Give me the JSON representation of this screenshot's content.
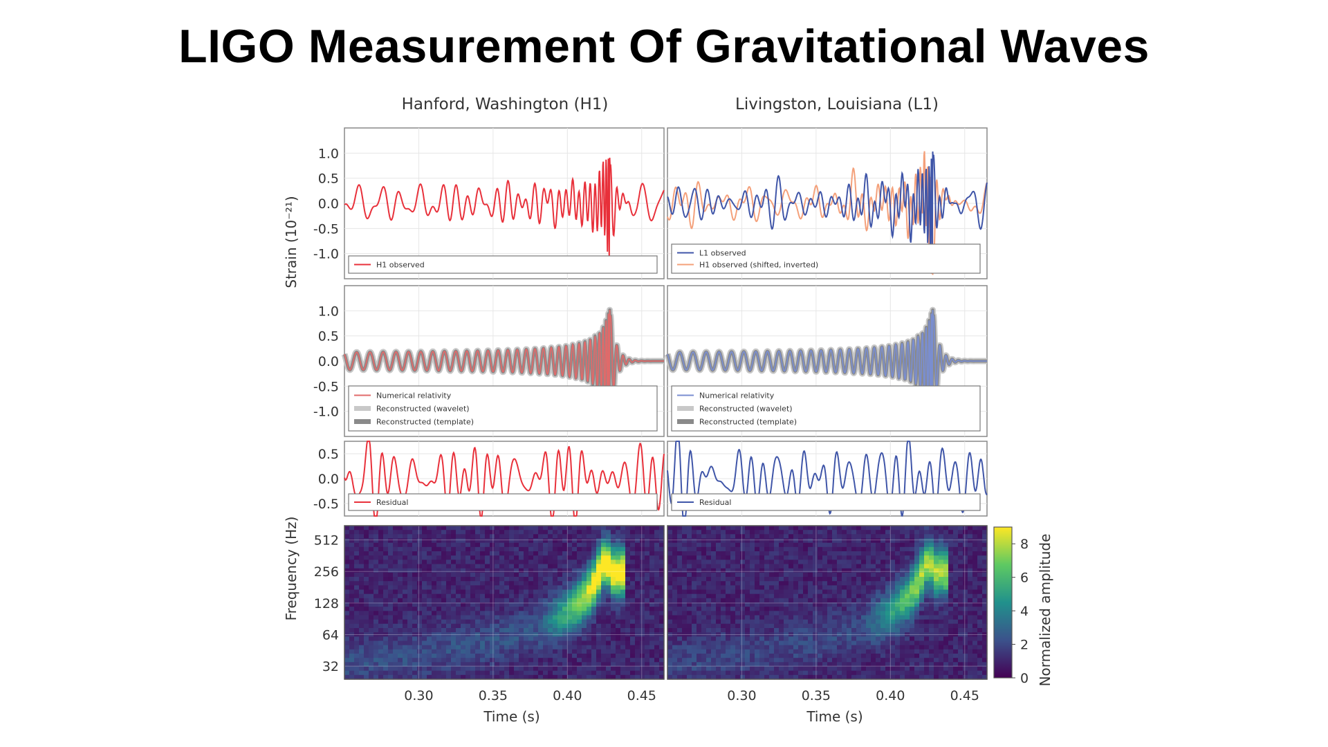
{
  "page": {
    "title": "LIGO Measurement Of Gravitational Waves"
  },
  "colors": {
    "h1": "#e8303a",
    "l1": "#3f55a8",
    "h1_shifted": "#f4a07a",
    "nr_h1": "#e06a6a",
    "nr_l1": "#7a8ed0",
    "wavelet_band": "#c8c8c8",
    "template_band": "#8a8a8a"
  },
  "chart_data": [
    {
      "id": "h1-observed",
      "type": "line",
      "column_title": "Hanford, Washington (H1)",
      "ylabel": "Strain (10⁻²¹)",
      "ylim": [
        -1.5,
        1.5
      ],
      "yticks": [
        1.0,
        0.5,
        0.0,
        -0.5,
        -1.0
      ],
      "yticklabels": [
        "1.0",
        "0.5",
        "0.0",
        "-0.5",
        "-1.0"
      ],
      "xlim": [
        0.25,
        0.465
      ],
      "grid": true,
      "series": [
        {
          "name": "H1 observed",
          "style": "noisy-chirp",
          "color_key": "h1"
        }
      ],
      "legend": [
        {
          "label": "H1 observed",
          "color_key": "h1"
        }
      ]
    },
    {
      "id": "l1-observed",
      "type": "line",
      "column_title": "Livingston, Louisiana (L1)",
      "ylim": [
        -1.5,
        1.5
      ],
      "xlim": [
        0.25,
        0.465
      ],
      "grid": true,
      "series": [
        {
          "name": "H1 observed (shifted, inverted)",
          "style": "noisy-chirp",
          "color_key": "h1_shifted"
        },
        {
          "name": "L1 observed",
          "style": "noisy-chirp",
          "color_key": "l1"
        }
      ],
      "legend": [
        {
          "label": "L1 observed",
          "color_key": "l1"
        },
        {
          "label": "H1 observed (shifted, inverted)",
          "color_key": "h1_shifted"
        }
      ]
    },
    {
      "id": "h1-reconstructed",
      "type": "line",
      "ylim": [
        -1.5,
        1.5
      ],
      "yticks": [
        1.0,
        0.5,
        0.0,
        -0.5,
        -1.0
      ],
      "yticklabels": [
        "1.0",
        "0.5",
        "0.0",
        "-0.5",
        "-1.0"
      ],
      "xlim": [
        0.25,
        0.465
      ],
      "grid": true,
      "series": [
        {
          "name": "Numerical relativity",
          "style": "clean-chirp",
          "color_key": "nr_h1"
        }
      ],
      "legend": [
        {
          "label": "Numerical relativity",
          "color_key": "nr_h1"
        },
        {
          "label": "Reconstructed (wavelet)",
          "color_key": "wavelet_band"
        },
        {
          "label": "Reconstructed (template)",
          "color_key": "template_band"
        }
      ]
    },
    {
      "id": "l1-reconstructed",
      "type": "line",
      "ylim": [
        -1.5,
        1.5
      ],
      "xlim": [
        0.25,
        0.465
      ],
      "grid": true,
      "series": [
        {
          "name": "Numerical relativity",
          "style": "clean-chirp",
          "color_key": "nr_l1"
        }
      ],
      "legend": [
        {
          "label": "Numerical relativity",
          "color_key": "nr_l1"
        },
        {
          "label": "Reconstructed (wavelet)",
          "color_key": "wavelet_band"
        },
        {
          "label": "Reconstructed (template)",
          "color_key": "template_band"
        }
      ]
    },
    {
      "id": "h1-residual",
      "type": "line",
      "ylim": [
        -0.75,
        0.75
      ],
      "yticks": [
        0.5,
        0.0,
        -0.5
      ],
      "yticklabels": [
        "0.5",
        "0.0",
        "-0.5"
      ],
      "xlim": [
        0.25,
        0.465
      ],
      "grid": true,
      "series": [
        {
          "name": "Residual",
          "style": "noise",
          "color_key": "h1"
        }
      ],
      "legend": [
        {
          "label": "Residual",
          "color_key": "h1"
        }
      ]
    },
    {
      "id": "l1-residual",
      "type": "line",
      "ylim": [
        -0.75,
        0.75
      ],
      "xlim": [
        0.25,
        0.465
      ],
      "grid": true,
      "series": [
        {
          "name": "Residual",
          "style": "noise",
          "color_key": "l1"
        }
      ],
      "legend": [
        {
          "label": "Residual",
          "color_key": "l1"
        }
      ]
    },
    {
      "id": "h1-spectrogram",
      "type": "heatmap",
      "ylabel": "Frequency (Hz)",
      "xlabel": "Time (s)",
      "yscale": "log2",
      "yticks": [
        512,
        256,
        128,
        64,
        32
      ],
      "yticklabels": [
        "512",
        "256",
        "128",
        "64",
        "32"
      ],
      "xticks": [
        0.3,
        0.35,
        0.4,
        0.45
      ],
      "xticklabels": [
        "0.30",
        "0.35",
        "0.40",
        "0.45"
      ],
      "xlim": [
        0.25,
        0.465
      ],
      "ylim": [
        24,
        700
      ],
      "peak_time": 0.42,
      "peak_frequency": 150,
      "peak_amplitude": 9
    },
    {
      "id": "l1-spectrogram",
      "type": "heatmap",
      "xlabel": "Time (s)",
      "yscale": "log2",
      "xticks": [
        0.3,
        0.35,
        0.4,
        0.45
      ],
      "xticklabels": [
        "0.30",
        "0.35",
        "0.40",
        "0.45"
      ],
      "xlim": [
        0.25,
        0.465
      ],
      "ylim": [
        24,
        700
      ],
      "peak_time": 0.42,
      "peak_frequency": 150,
      "peak_amplitude": 7,
      "colorbar": {
        "label": "Normalized amplitude",
        "range": [
          0,
          9
        ],
        "ticks": [
          8,
          6,
          4,
          2,
          0
        ],
        "ticklabels": [
          "8",
          "6",
          "4",
          "2",
          "0"
        ]
      }
    }
  ]
}
